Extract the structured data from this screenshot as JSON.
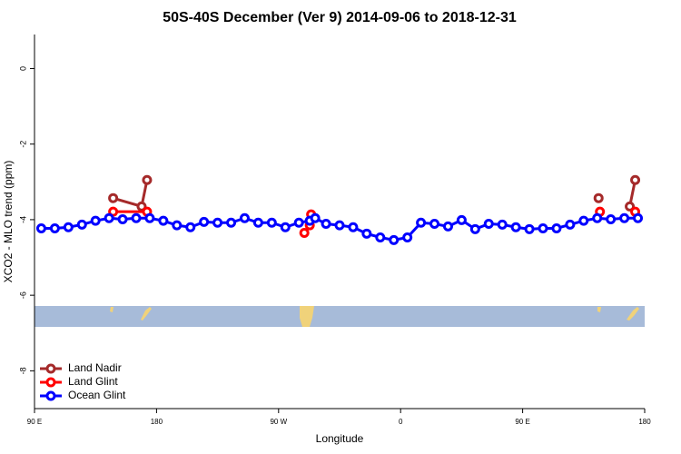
{
  "chart_data": {
    "type": "line",
    "title": "50S-40S December (Ver 9)   2014-09-06 to 2018-12-31",
    "x_label": "Longitude",
    "y_label": "XCO2 - MLO trend (ppm)",
    "xlim": [
      90,
      540
    ],
    "xticks": [
      {
        "value": 90,
        "label": "90 E"
      },
      {
        "value": 180,
        "label": "180"
      },
      {
        "value": 270,
        "label": "90 W"
      },
      {
        "value": 360,
        "label": "0"
      },
      {
        "value": 450,
        "label": "90 E"
      },
      {
        "value": 540,
        "label": "180"
      }
    ],
    "ylim": [
      -9,
      0.9
    ],
    "yticks": [
      0,
      -2,
      -4,
      -6,
      -8
    ],
    "legend": "bottomleft",
    "series": [
      {
        "name": "Land Nadir",
        "color": "#a52a2a",
        "x": [
          148,
          169,
          173,
          180,
          506,
          515,
          529,
          533
        ],
        "values": [
          -3.43,
          -3.65,
          -2.95,
          null,
          -3.43,
          null,
          -3.65,
          -2.95
        ]
      },
      {
        "name": "Land Glint",
        "color": "#ff0000",
        "x": [
          148,
          173,
          180,
          289,
          293,
          294,
          300,
          507,
          520,
          533
        ],
        "values": [
          -3.79,
          -3.79,
          null,
          -4.35,
          -4.15,
          -3.86,
          null,
          -3.79,
          null,
          -3.79
        ]
      },
      {
        "name": "Ocean Glint",
        "color": "#0000ff",
        "x": [
          95,
          105,
          115,
          125,
          135,
          145,
          155,
          165,
          175,
          185,
          195,
          205,
          215,
          225,
          235,
          245,
          255,
          265,
          275,
          285,
          293,
          297,
          305,
          315,
          325,
          335,
          345,
          355,
          365,
          375,
          385,
          395,
          405,
          415,
          425,
          435,
          445,
          455,
          465,
          475,
          485,
          495,
          505,
          515,
          525,
          535
        ],
        "values": [
          -4.23,
          -4.23,
          -4.2,
          -4.13,
          -4.03,
          -3.96,
          -3.99,
          -3.96,
          -3.96,
          -4.03,
          -4.15,
          -4.2,
          -4.06,
          -4.08,
          -4.08,
          -3.96,
          -4.08,
          -4.08,
          -4.2,
          -4.08,
          -4.03,
          -3.96,
          -4.11,
          -4.15,
          -4.2,
          -4.37,
          -4.47,
          -4.54,
          -4.47,
          -4.08,
          -4.11,
          -4.18,
          -4.01,
          -4.25,
          -4.11,
          -4.13,
          -4.2,
          -4.25,
          -4.23,
          -4.23,
          -4.13,
          -4.03,
          -3.96,
          -3.99,
          -3.96,
          -3.96
        ]
      }
    ]
  }
}
